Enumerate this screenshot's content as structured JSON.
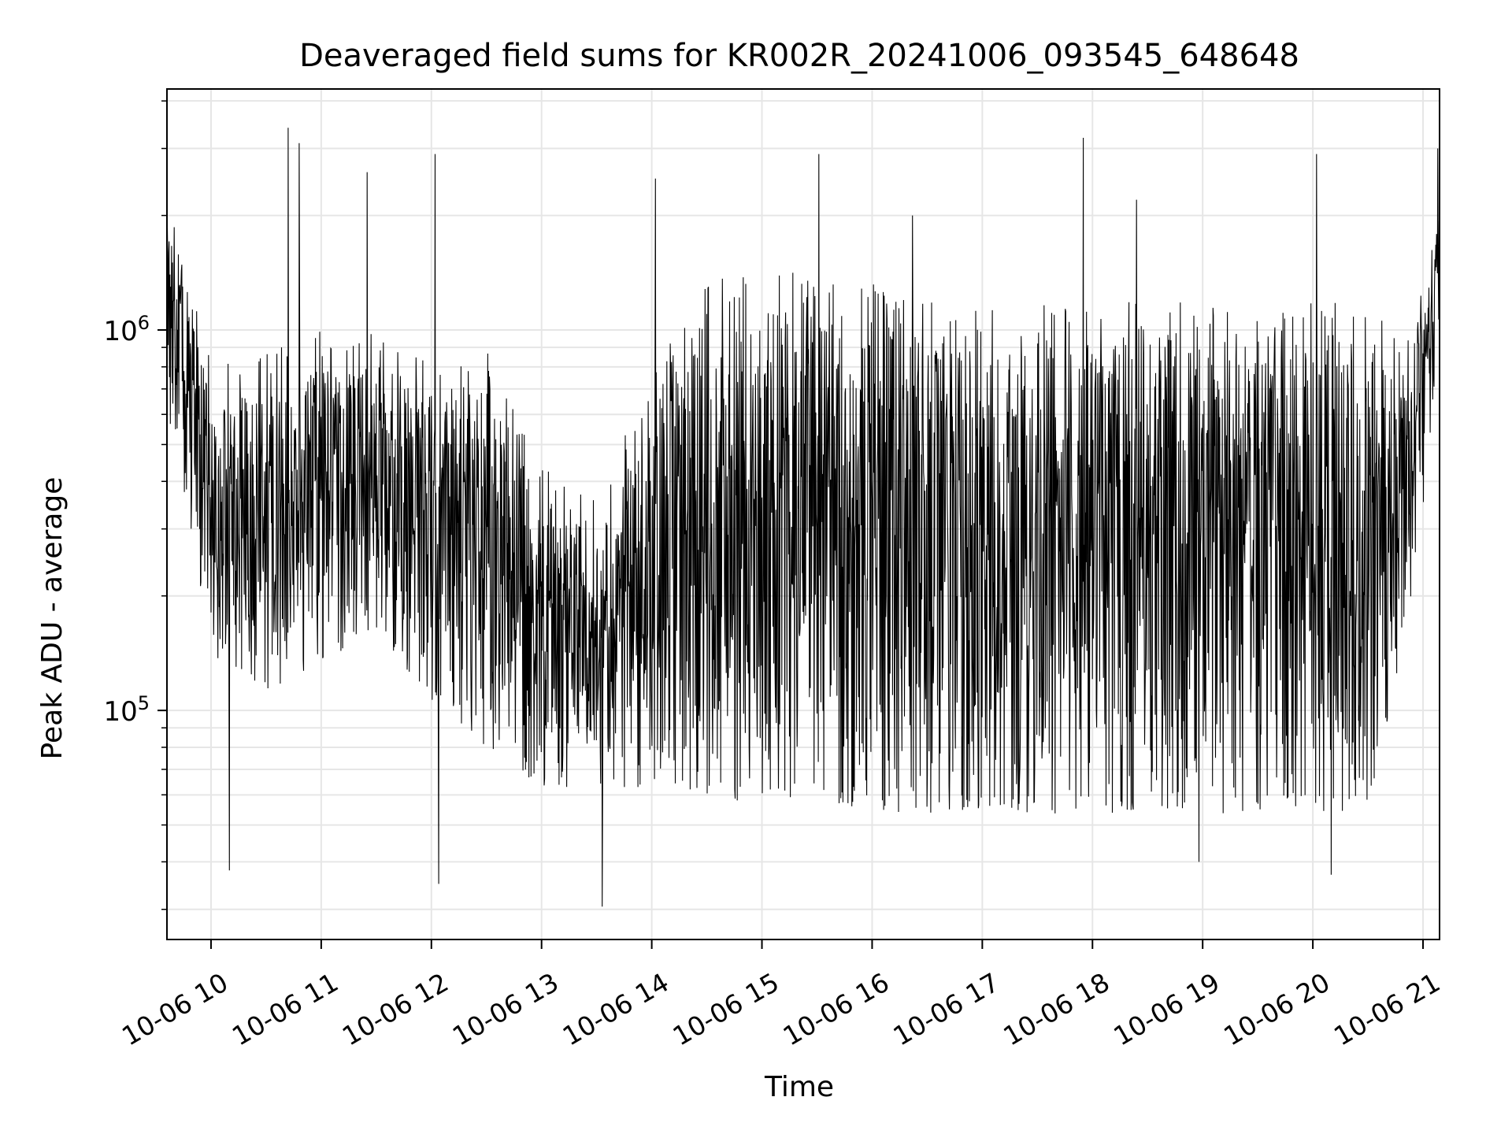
{
  "chart_data": {
    "type": "line",
    "title": "Deaveraged field sums for KR002R_20241006_093545_648648",
    "xlabel": "Time",
    "ylabel": "Peak ADU - average",
    "yscale": "log",
    "grid": true,
    "line_color": "#000000",
    "x_range": [
      "2024-10-06 09:36",
      "2024-10-06 21:09"
    ],
    "ylim": [
      25000,
      4300000
    ],
    "x_ticks": [
      {
        "time": "2024-10-06 10:00",
        "label": "10-06 10"
      },
      {
        "time": "2024-10-06 11:00",
        "label": "10-06 11"
      },
      {
        "time": "2024-10-06 12:00",
        "label": "10-06 12"
      },
      {
        "time": "2024-10-06 13:00",
        "label": "10-06 13"
      },
      {
        "time": "2024-10-06 14:00",
        "label": "10-06 14"
      },
      {
        "time": "2024-10-06 15:00",
        "label": "10-06 15"
      },
      {
        "time": "2024-10-06 16:00",
        "label": "10-06 16"
      },
      {
        "time": "2024-10-06 17:00",
        "label": "10-06 17"
      },
      {
        "time": "2024-10-06 18:00",
        "label": "10-06 18"
      },
      {
        "time": "2024-10-06 19:00",
        "label": "10-06 19"
      },
      {
        "time": "2024-10-06 20:00",
        "label": "10-06 20"
      },
      {
        "time": "2024-10-06 21:00",
        "label": "10-06 21"
      }
    ],
    "y_major_ticks": [
      {
        "value": 100000,
        "base": "10",
        "exp": "5"
      },
      {
        "value": 1000000,
        "base": "10",
        "exp": "6"
      }
    ],
    "envelope": {
      "x": [
        "2024-10-06 09:36",
        "2024-10-06 09:48",
        "2024-10-06 10:00",
        "2024-10-06 10:30",
        "2024-10-06 11:00",
        "2024-10-06 11:30",
        "2024-10-06 12:00",
        "2024-10-06 12:30",
        "2024-10-06 13:00",
        "2024-10-06 13:30",
        "2024-10-06 14:00",
        "2024-10-06 14:30",
        "2024-10-06 15:00",
        "2024-10-06 15:30",
        "2024-10-06 16:00",
        "2024-10-06 16:30",
        "2024-10-06 17:00",
        "2024-10-06 17:30",
        "2024-10-06 18:00",
        "2024-10-06 18:30",
        "2024-10-06 19:00",
        "2024-10-06 19:30",
        "2024-10-06 20:00",
        "2024-10-06 20:30",
        "2024-10-06 20:54",
        "2024-10-06 21:09"
      ],
      "upper": [
        1800000,
        1300000,
        650000,
        700000,
        800000,
        800000,
        650000,
        700000,
        350000,
        300000,
        600000,
        1100000,
        1100000,
        1150000,
        1050000,
        950000,
        950000,
        950000,
        950000,
        950000,
        950000,
        950000,
        950000,
        950000,
        750000,
        2000000
      ],
      "lower": [
        700000,
        350000,
        150000,
        120000,
        150000,
        180000,
        120000,
        90000,
        70000,
        70000,
        70000,
        65000,
        65000,
        65000,
        60000,
        60000,
        60000,
        60000,
        60000,
        60000,
        60000,
        60000,
        60000,
        60000,
        200000,
        1000000
      ]
    },
    "spikes": [
      {
        "x": "2024-10-06 10:42",
        "y": 3400000
      },
      {
        "x": "2024-10-06 10:48",
        "y": 3100000
      },
      {
        "x": "2024-10-06 11:25",
        "y": 2600000
      },
      {
        "x": "2024-10-06 12:02",
        "y": 2900000
      },
      {
        "x": "2024-10-06 10:10",
        "y": 38000
      },
      {
        "x": "2024-10-06 12:04",
        "y": 35000
      },
      {
        "x": "2024-10-06 13:33",
        "y": 30500
      },
      {
        "x": "2024-10-06 14:02",
        "y": 2500000
      },
      {
        "x": "2024-10-06 15:31",
        "y": 2900000
      },
      {
        "x": "2024-10-06 16:22",
        "y": 2000000
      },
      {
        "x": "2024-10-06 17:55",
        "y": 3200000
      },
      {
        "x": "2024-10-06 18:24",
        "y": 2200000
      },
      {
        "x": "2024-10-06 18:58",
        "y": 40000
      },
      {
        "x": "2024-10-06 20:02",
        "y": 2900000
      },
      {
        "x": "2024-10-06 20:10",
        "y": 37000
      },
      {
        "x": "2024-10-06 21:08",
        "y": 3000000
      }
    ]
  }
}
